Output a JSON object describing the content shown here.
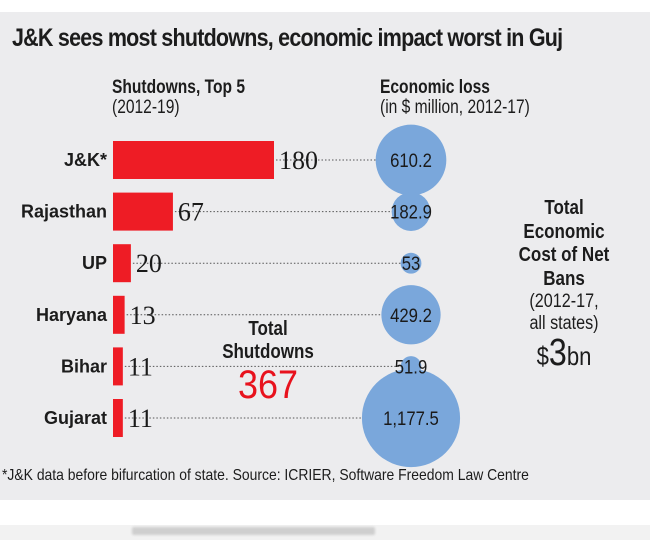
{
  "title": "J&K sees most shutdowns, economic impact worst in Guj",
  "left_header": {
    "title": "Shutdowns, Top 5",
    "subtitle": "(2012-19)"
  },
  "right_header": {
    "title": "Economic loss",
    "subtitle": "(in $ million, 2012-17)"
  },
  "total_shutdowns": {
    "label_line1": "Total",
    "label_line2": "Shutdowns",
    "value": "367"
  },
  "total_economic_cost": {
    "line1": "Total",
    "line2": "Economic",
    "line3": "Cost of Net",
    "line4": "Bans",
    "line5": "(2012-17,",
    "line6": "all states)",
    "currency": "$",
    "amount": "3",
    "unit": "bn"
  },
  "footnote": "*J&K data before bifurcation of state. Source: ICRIER, Software Freedom Law Centre",
  "colors": {
    "bar": "#ee1c25",
    "bubble": "#7aa7db",
    "total_red": "#e8121d",
    "background": "#ececee"
  },
  "chart_data": {
    "type": "bar",
    "title": "J&K sees most shutdowns, economic impact worst in Guj",
    "categories": [
      "J&K*",
      "Rajasthan",
      "UP",
      "Haryana",
      "Bihar",
      "Gujarat"
    ],
    "series": [
      {
        "name": "Shutdowns (2012-19)",
        "chart_type": "bar",
        "values": [
          180,
          67,
          20,
          13,
          11,
          11
        ],
        "labels": [
          "180",
          "67",
          "20",
          "13",
          "11",
          "11"
        ]
      },
      {
        "name": "Economic loss (in $ million, 2012-17)",
        "chart_type": "bubble",
        "values": [
          610.2,
          182.9,
          53,
          429.2,
          51.9,
          1177.5
        ],
        "labels": [
          "610.2",
          "182.9",
          "53",
          "429.2",
          "51.9",
          "1,177.5"
        ]
      }
    ],
    "orientation": "horizontal",
    "grid": false,
    "legend": "none",
    "xlabel": "",
    "ylabel": ""
  }
}
